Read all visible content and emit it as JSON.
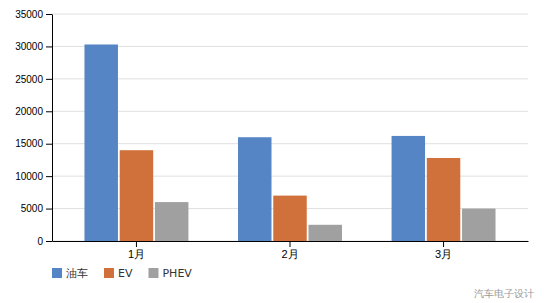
{
  "chart_data": {
    "type": "bar",
    "categories": [
      "1月",
      "2月",
      "3月"
    ],
    "series": [
      {
        "name": "油车",
        "color": "#5585c5",
        "values": [
          30300,
          16000,
          16200
        ]
      },
      {
        "name": "EV",
        "color": "#d0703a",
        "values": [
          14000,
          7000,
          12800
        ]
      },
      {
        "name": "PHEV",
        "color": "#a0a0a0",
        "values": [
          6000,
          2500,
          5000
        ]
      }
    ],
    "ylim": [
      0,
      35000
    ],
    "yticks": [
      0,
      5000,
      10000,
      15000,
      20000,
      25000,
      30000,
      35000
    ],
    "grid": true,
    "legend": "bottom",
    "annotations": [
      "汽车电子设计"
    ]
  }
}
